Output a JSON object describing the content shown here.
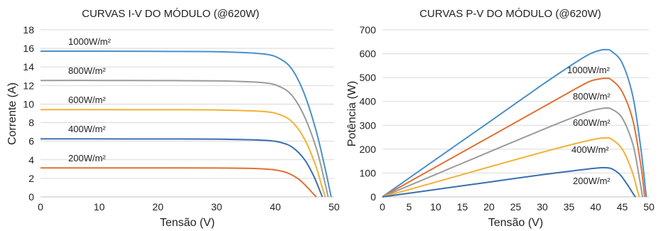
{
  "chart_data": [
    {
      "type": "line",
      "title": "CURVAS I-V DO MÓDULO (@620W)",
      "xlabel": "Tensão (V)",
      "ylabel": "Corrente (A)",
      "xlim": [
        0,
        50
      ],
      "ylim": [
        0,
        18
      ],
      "xticks": [
        0,
        10,
        20,
        30,
        40,
        50
      ],
      "yticks": [
        0,
        2,
        4,
        6,
        8,
        10,
        12,
        14,
        16,
        18
      ],
      "grid": "horizontal",
      "legend": "none (labels above curves)",
      "series": [
        {
          "name": "1000W/m²",
          "color": "#4a90c8",
          "values": [
            [
              0,
              15.7
            ],
            [
              10,
              15.7
            ],
            [
              20,
              15.68
            ],
            [
              30,
              15.65
            ],
            [
              38,
              15.4
            ],
            [
              41,
              14.8
            ],
            [
              43,
              13.6
            ],
            [
              45,
              11.0
            ],
            [
              47,
              7.0
            ],
            [
              48.5,
              3.0
            ],
            [
              49.5,
              0
            ]
          ]
        },
        {
          "name": "800W/m²",
          "color": "#9b9b9b",
          "values": [
            [
              0,
              12.55
            ],
            [
              10,
              12.55
            ],
            [
              20,
              12.53
            ],
            [
              30,
              12.5
            ],
            [
              38,
              12.3
            ],
            [
              41,
              11.8
            ],
            [
              43,
              10.8
            ],
            [
              45,
              8.6
            ],
            [
              47,
              5.2
            ],
            [
              48.2,
              2.2
            ],
            [
              49.0,
              0
            ]
          ]
        },
        {
          "name": "600W/m²",
          "color": "#f2b134",
          "values": [
            [
              0,
              9.4
            ],
            [
              10,
              9.4
            ],
            [
              20,
              9.39
            ],
            [
              30,
              9.37
            ],
            [
              38,
              9.2
            ],
            [
              41,
              8.8
            ],
            [
              43,
              8.0
            ],
            [
              45,
              6.2
            ],
            [
              46.8,
              3.5
            ],
            [
              47.9,
              1.2
            ],
            [
              48.5,
              0
            ]
          ]
        },
        {
          "name": "400W/m²",
          "color": "#3a6fb0",
          "values": [
            [
              0,
              6.25
            ],
            [
              10,
              6.25
            ],
            [
              20,
              6.24
            ],
            [
              30,
              6.23
            ],
            [
              38,
              6.1
            ],
            [
              41,
              5.85
            ],
            [
              43,
              5.3
            ],
            [
              45,
              4.0
            ],
            [
              46.5,
              2.3
            ],
            [
              47.5,
              0.8
            ],
            [
              48.0,
              0
            ]
          ]
        },
        {
          "name": "200W/m²",
          "color": "#e07033",
          "values": [
            [
              0,
              3.12
            ],
            [
              10,
              3.12
            ],
            [
              20,
              3.12
            ],
            [
              30,
              3.11
            ],
            [
              37,
              3.05
            ],
            [
              40,
              2.9
            ],
            [
              42,
              2.6
            ],
            [
              44,
              1.9
            ],
            [
              45.5,
              1.0
            ],
            [
              46.5,
              0.3
            ],
            [
              47.0,
              0
            ]
          ]
        }
      ]
    },
    {
      "type": "line",
      "title": "CURVAS P-V DO MÓDULO (@620W)",
      "xlabel": "Tensão (V)",
      "ylabel": "Potência (W)",
      "xlim": [
        0,
        50
      ],
      "ylim": [
        0,
        700
      ],
      "xticks": [
        0,
        5,
        10,
        15,
        20,
        25,
        30,
        35,
        40,
        45,
        50
      ],
      "yticks": [
        0,
        100,
        200,
        300,
        400,
        500,
        600,
        700
      ],
      "grid": "horizontal",
      "legend": "none (labels beside curves)",
      "series": [
        {
          "name": "1000W/m²",
          "color": "#4a90c8",
          "values": [
            [
              0,
              0
            ],
            [
              10,
              157
            ],
            [
              20,
              313
            ],
            [
              30,
              470
            ],
            [
              36,
              560
            ],
            [
              39,
              600
            ],
            [
              41,
              615
            ],
            [
              42,
              617
            ],
            [
              43,
              610
            ],
            [
              45,
              560
            ],
            [
              47,
              420
            ],
            [
              48.5,
              200
            ],
            [
              49.5,
              0
            ]
          ]
        },
        {
          "name": "800W/m²",
          "color": "#e07033",
          "values": [
            [
              0,
              0
            ],
            [
              10,
              125
            ],
            [
              20,
              250
            ],
            [
              30,
              375
            ],
            [
              36,
              450
            ],
            [
              39,
              485
            ],
            [
              41,
              495
            ],
            [
              42,
              497
            ],
            [
              43,
              490
            ],
            [
              45,
              440
            ],
            [
              47,
              320
            ],
            [
              48.5,
              130
            ],
            [
              49.2,
              0
            ]
          ]
        },
        {
          "name": "600W/m²",
          "color": "#9b9b9b",
          "values": [
            [
              0,
              0
            ],
            [
              10,
              94
            ],
            [
              20,
              188
            ],
            [
              30,
              281
            ],
            [
              36,
              335
            ],
            [
              39,
              360
            ],
            [
              41,
              370
            ],
            [
              42,
              372
            ],
            [
              43,
              368
            ],
            [
              45,
              330
            ],
            [
              47,
              220
            ],
            [
              48.2,
              80
            ],
            [
              48.8,
              0
            ]
          ]
        },
        {
          "name": "400W/m²",
          "color": "#f2b134",
          "values": [
            [
              0,
              0
            ],
            [
              10,
              62
            ],
            [
              20,
              125
            ],
            [
              30,
              187
            ],
            [
              36,
              222
            ],
            [
              39,
              238
            ],
            [
              41,
              246
            ],
            [
              42,
              247
            ],
            [
              43,
              242
            ],
            [
              45,
              200
            ],
            [
              46.8,
              110
            ],
            [
              47.8,
              30
            ],
            [
              48.2,
              0
            ]
          ]
        },
        {
          "name": "200W/m²",
          "color": "#3a6fb0",
          "values": [
            [
              0,
              0
            ],
            [
              10,
              31
            ],
            [
              20,
              62
            ],
            [
              30,
              93
            ],
            [
              36,
              110
            ],
            [
              39,
              118
            ],
            [
              41,
              122
            ],
            [
              42,
              122
            ],
            [
              43,
              118
            ],
            [
              44.5,
              95
            ],
            [
              46,
              50
            ],
            [
              47.2,
              8
            ],
            [
              47.5,
              0
            ]
          ]
        }
      ]
    }
  ]
}
